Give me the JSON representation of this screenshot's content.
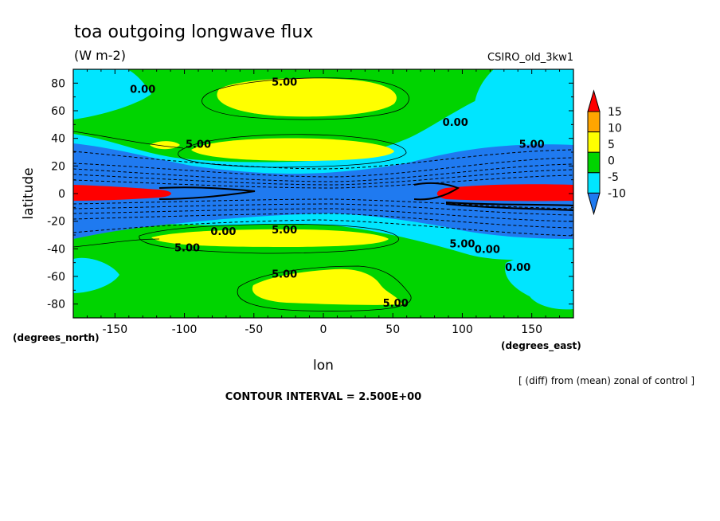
{
  "chart_data": {
    "type": "heatmap",
    "title": "toa outgoing longwave flux",
    "units": "(W m-2)",
    "model_label": "CSIRO_old_3kw1",
    "xlabel": "lon",
    "ylabel": "latitude",
    "x_unit_label": "(degrees_east)",
    "y_unit_label": "(degrees_north)",
    "xlim": [
      -180,
      180
    ],
    "ylim": [
      -90,
      90
    ],
    "x_ticks": [
      -150,
      -100,
      -50,
      0,
      50,
      100,
      150
    ],
    "x_tick_labels": [
      "-150",
      "-100",
      "-50",
      "0",
      "50",
      "100",
      "150"
    ],
    "y_ticks": [
      -80,
      -60,
      -40,
      -20,
      0,
      20,
      40,
      60,
      80
    ],
    "y_tick_labels": [
      "-80",
      "-60",
      "-40",
      "-20",
      "0",
      "20",
      "40",
      "60",
      "80"
    ],
    "note": "[ (diff) from (mean) zonal of control ]",
    "contour_interval_text": "CONTOUR INTERVAL = 2.500E+00",
    "colorbar": {
      "levels": [
        -10,
        -5,
        0,
        5,
        10,
        15
      ],
      "tick_labels": [
        "-10",
        "-5",
        "0",
        "5",
        "10",
        "15"
      ],
      "colors": [
        "#1f7af0",
        "#00e5ff",
        "#00d400",
        "#ffff00",
        "#ffa500",
        "#ff0000"
      ],
      "extend": "both"
    },
    "contour_labels": [
      {
        "text": "0.00",
        "lon": -130,
        "lat": 76
      },
      {
        "text": "5.00",
        "lon": -28,
        "lat": 81
      },
      {
        "text": "0.00",
        "lon": 95,
        "lat": 52
      },
      {
        "text": "5.00",
        "lon": -90,
        "lat": 36
      },
      {
        "text": "5.00",
        "lon": 150,
        "lat": 36
      },
      {
        "text": "5.00",
        "lon": -28,
        "lat": -26
      },
      {
        "text": "5.00",
        "lon": -98,
        "lat": -39
      },
      {
        "text": "0.00",
        "lon": -72,
        "lat": -27
      },
      {
        "text": "5.00",
        "lon": 100,
        "lat": -36
      },
      {
        "text": "0.00",
        "lon": 118,
        "lat": -40
      },
      {
        "text": "0.00",
        "lon": 140,
        "lat": -53
      },
      {
        "text": "5.00",
        "lon": -28,
        "lat": -58
      },
      {
        "text": "5.00",
        "lon": 52,
        "lat": -79
      }
    ]
  },
  "text": {
    "x_unit_label": "(degrees_east)",
    "y_unit_label": "(degrees_north)"
  }
}
